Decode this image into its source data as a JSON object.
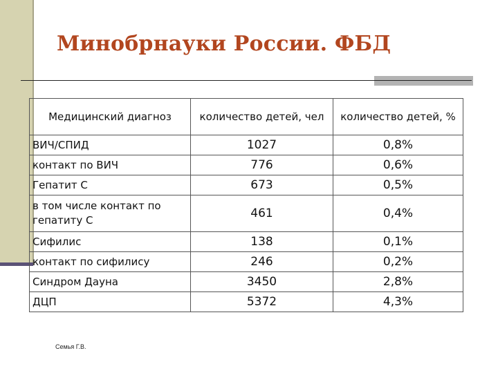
{
  "slide": {
    "title": "Минобрнауки России. ФБД",
    "footer": "Семья Г.В."
  },
  "table": {
    "columns": [
      "Медицинский диагноз",
      "количество детей, чел",
      "количество детей, %"
    ],
    "rows": [
      {
        "diagnosis": "ВИЧ/СПИД",
        "count": "1027",
        "percent": "0,8%"
      },
      {
        "diagnosis": "контакт по ВИЧ",
        "count": "776",
        "percent": "0,6%"
      },
      {
        "diagnosis": "Гепатит С",
        "count": "673",
        "percent": "0,5%"
      },
      {
        "diagnosis": "в том числе контакт по гепатиту С",
        "count": "461",
        "percent": "0,4%"
      },
      {
        "diagnosis": "Сифилис",
        "count": "138",
        "percent": "0,1%"
      },
      {
        "diagnosis": "контакт по сифилису",
        "count": "246",
        "percent": "0,2%"
      },
      {
        "diagnosis": "Синдром Дауна",
        "count": "3450",
        "percent": "2,8%"
      },
      {
        "diagnosis": "ДЦП",
        "count": "5372",
        "percent": "4,3%"
      }
    ]
  },
  "colors": {
    "title": "#b2461f",
    "left_band": "#d6d3b0",
    "left_accent": "#5b5277",
    "rule_accent": "#b3b3b3"
  }
}
